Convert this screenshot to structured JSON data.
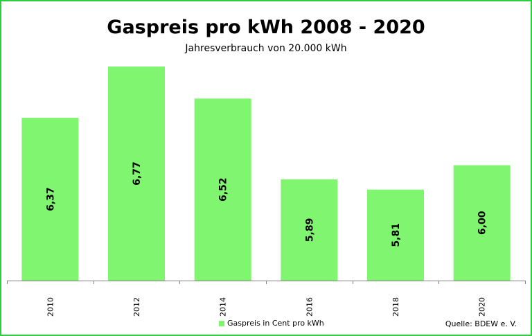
{
  "chart_data": {
    "type": "bar",
    "title": "Gaspreis pro kWh 2008 - 2020",
    "subtitle": "Jahresverbrauch von 20.000 kWh",
    "categories": [
      "2010",
      "2012",
      "2014",
      "2016",
      "2018",
      "2020"
    ],
    "series": [
      {
        "name": "Gaspreis in Cent pro kWh",
        "values": [
          6.37,
          6.77,
          6.52,
          5.89,
          5.81,
          6.0
        ]
      }
    ],
    "data_labels": [
      "6,37",
      "6,77",
      "6,52",
      "5,89",
      "5,81",
      "6,00"
    ],
    "ylim": [
      5.1,
      6.9
    ],
    "grid": false,
    "legend_position": "bottom",
    "source_note": "Quelle: BDEW e. V.",
    "colors": {
      "bar": "#80f56f",
      "frame": "#2ecc40",
      "axis": "#808080"
    }
  }
}
